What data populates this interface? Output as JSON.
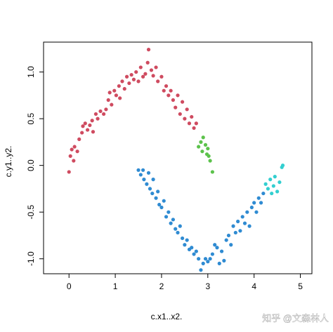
{
  "chart_data": {
    "type": "scatter",
    "xlabel": "c.x1..x2.",
    "ylabel": "c.y1..y2.",
    "xlim": [
      -0.55,
      5.25
    ],
    "ylim": [
      -1.16,
      1.32
    ],
    "xticks": [
      0,
      1,
      2,
      3,
      4,
      5
    ],
    "yticks": [
      {
        "value": -1,
        "label": "-1.0"
      },
      {
        "value": -0.5,
        "label": "-0.5"
      },
      {
        "value": 0,
        "label": "0.0"
      },
      {
        "value": 0.5,
        "label": "0.5"
      },
      {
        "value": 1,
        "label": "1.0"
      }
    ],
    "series": [
      {
        "color": "#cf4b60",
        "x": [
          0,
          0.03,
          0.06,
          0.1,
          0.12,
          0.18,
          0.22,
          0.28,
          0.3,
          0.35,
          0.4,
          0.45,
          0.5,
          0.52,
          0.58,
          0.62,
          0.68,
          0.75,
          0.8,
          0.85,
          0.88,
          0.92,
          0.98,
          1.02,
          1.08,
          1.1,
          1.15,
          1.2,
          1.25,
          1.3,
          1.35,
          1.4,
          1.45,
          1.5,
          1.55,
          1.6,
          1.65,
          1.7,
          1.72,
          1.78,
          1.82,
          1.88,
          1.92,
          2.0,
          2.05,
          2.1,
          2.15,
          2.2,
          2.25,
          2.3,
          2.35,
          2.4,
          2.45,
          2.5,
          2.55,
          2.6,
          2.65,
          2.7,
          2.75
        ],
        "y": [
          -0.07,
          0.1,
          0.17,
          0.05,
          0.2,
          0.15,
          0.28,
          0.35,
          0.42,
          0.45,
          0.38,
          0.43,
          0.48,
          0.36,
          0.55,
          0.5,
          0.58,
          0.55,
          0.6,
          0.7,
          0.78,
          0.65,
          0.8,
          0.75,
          0.85,
          0.72,
          0.9,
          0.82,
          0.95,
          0.88,
          0.97,
          0.92,
          1.0,
          0.9,
          1.05,
          0.95,
          0.98,
          1.1,
          1.24,
          1.02,
          0.96,
          1.05,
          0.9,
          0.95,
          0.8,
          0.85,
          0.75,
          0.8,
          0.7,
          0.62,
          0.75,
          0.55,
          0.68,
          0.5,
          0.6,
          0.45,
          0.52,
          0.4,
          0.45
        ]
      },
      {
        "color": "#5cc24b",
        "x": [
          2.8,
          2.85,
          2.88,
          2.9,
          2.95,
          2.98,
          3.0,
          3.02,
          3.05,
          3.1
        ],
        "y": [
          0.2,
          0.25,
          0.15,
          0.3,
          0.22,
          0.12,
          0.18,
          0.1,
          0.05,
          -0.07
        ]
      },
      {
        "color": "#2f8bd2",
        "x": [
          1.5,
          1.55,
          1.6,
          1.62,
          1.68,
          1.72,
          1.75,
          1.8,
          1.82,
          1.88,
          1.92,
          1.95,
          2.0,
          2.05,
          2.1,
          2.15,
          2.2,
          2.25,
          2.3,
          2.35,
          2.4,
          2.45,
          2.5,
          2.55,
          2.6,
          2.65,
          2.7,
          2.75,
          2.8,
          2.85,
          2.9,
          2.95,
          3.0,
          3.05,
          3.1,
          3.15,
          3.2,
          3.25,
          3.3,
          3.35,
          3.4,
          3.45,
          3.5,
          3.55,
          3.6,
          3.65,
          3.7,
          3.75,
          3.8,
          3.85,
          3.9,
          3.95,
          4.0,
          4.05,
          4.1,
          4.15,
          4.2
        ],
        "y": [
          -0.05,
          -0.1,
          -0.05,
          -0.15,
          -0.2,
          -0.08,
          -0.25,
          -0.3,
          -0.15,
          -0.35,
          -0.28,
          -0.42,
          -0.45,
          -0.38,
          -0.55,
          -0.5,
          -0.62,
          -0.58,
          -0.68,
          -0.72,
          -0.65,
          -0.78,
          -0.85,
          -0.8,
          -0.9,
          -0.88,
          -0.95,
          -0.92,
          -1.0,
          -1.12,
          -1.05,
          -1.0,
          -1.03,
          -1.0,
          -0.95,
          -0.85,
          -0.88,
          -1.05,
          -0.92,
          -1.02,
          -0.8,
          -0.75,
          -0.85,
          -0.65,
          -0.72,
          -0.6,
          -0.7,
          -0.55,
          -0.62,
          -0.5,
          -0.65,
          -0.45,
          -0.4,
          -0.5,
          -0.35,
          -0.4,
          -0.3
        ]
      },
      {
        "color": "#33cfd0",
        "x": [
          4.25,
          4.3,
          4.35,
          4.38,
          4.42,
          4.45,
          4.5,
          4.55,
          4.6,
          4.62
        ],
        "y": [
          -0.2,
          -0.25,
          -0.15,
          -0.3,
          -0.22,
          -0.12,
          -0.28,
          -0.18,
          -0.02,
          0.0
        ]
      }
    ]
  },
  "watermark": "知乎 @文森林人"
}
